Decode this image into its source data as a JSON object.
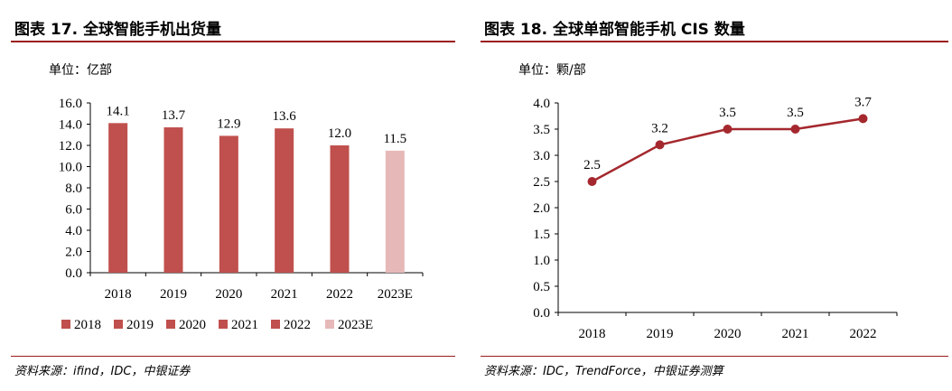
{
  "left": {
    "title": "图表 17. 全球智能手机出货量",
    "unit": "单位：亿部",
    "source": "资料来源：ifind，IDC，中银证券",
    "chart_data": {
      "type": "bar",
      "categories": [
        "2018",
        "2019",
        "2020",
        "2021",
        "2022",
        "2023E"
      ],
      "values": [
        14.1,
        13.7,
        12.9,
        13.6,
        12.0,
        11.5
      ],
      "data_labels": [
        "14.1",
        "13.7",
        "12.9",
        "13.6",
        "12.0",
        "11.5"
      ],
      "ylim": [
        0,
        16
      ],
      "yticks": [
        "0.0",
        "2.0",
        "4.0",
        "6.0",
        "8.0",
        "10.0",
        "12.0",
        "14.0",
        "16.0"
      ],
      "legend": [
        "2018",
        "2019",
        "2020",
        "2021",
        "2022",
        "2023E"
      ],
      "legend_position": "bottom",
      "colors": [
        "#c0504d",
        "#c0504d",
        "#c0504d",
        "#c0504d",
        "#c0504d",
        "#e6b9b8"
      ],
      "grid": false
    }
  },
  "right": {
    "title": "图表 18. 全球单部智能手机 CIS 数量",
    "unit": "单位：颗/部",
    "source": "资料来源：IDC，TrendForce，中银证券测算",
    "chart_data": {
      "type": "line",
      "categories": [
        "2018",
        "2019",
        "2020",
        "2021",
        "2022"
      ],
      "values": [
        2.5,
        3.2,
        3.5,
        3.5,
        3.7
      ],
      "data_labels": [
        "2.5",
        "3.2",
        "3.5",
        "3.5",
        "3.7"
      ],
      "ylim": [
        0,
        4
      ],
      "yticks": [
        "0.0",
        "0.5",
        "1.0",
        "1.5",
        "2.0",
        "2.5",
        "3.0",
        "3.5",
        "4.0"
      ],
      "color": "#a4282e",
      "grid": false
    }
  }
}
